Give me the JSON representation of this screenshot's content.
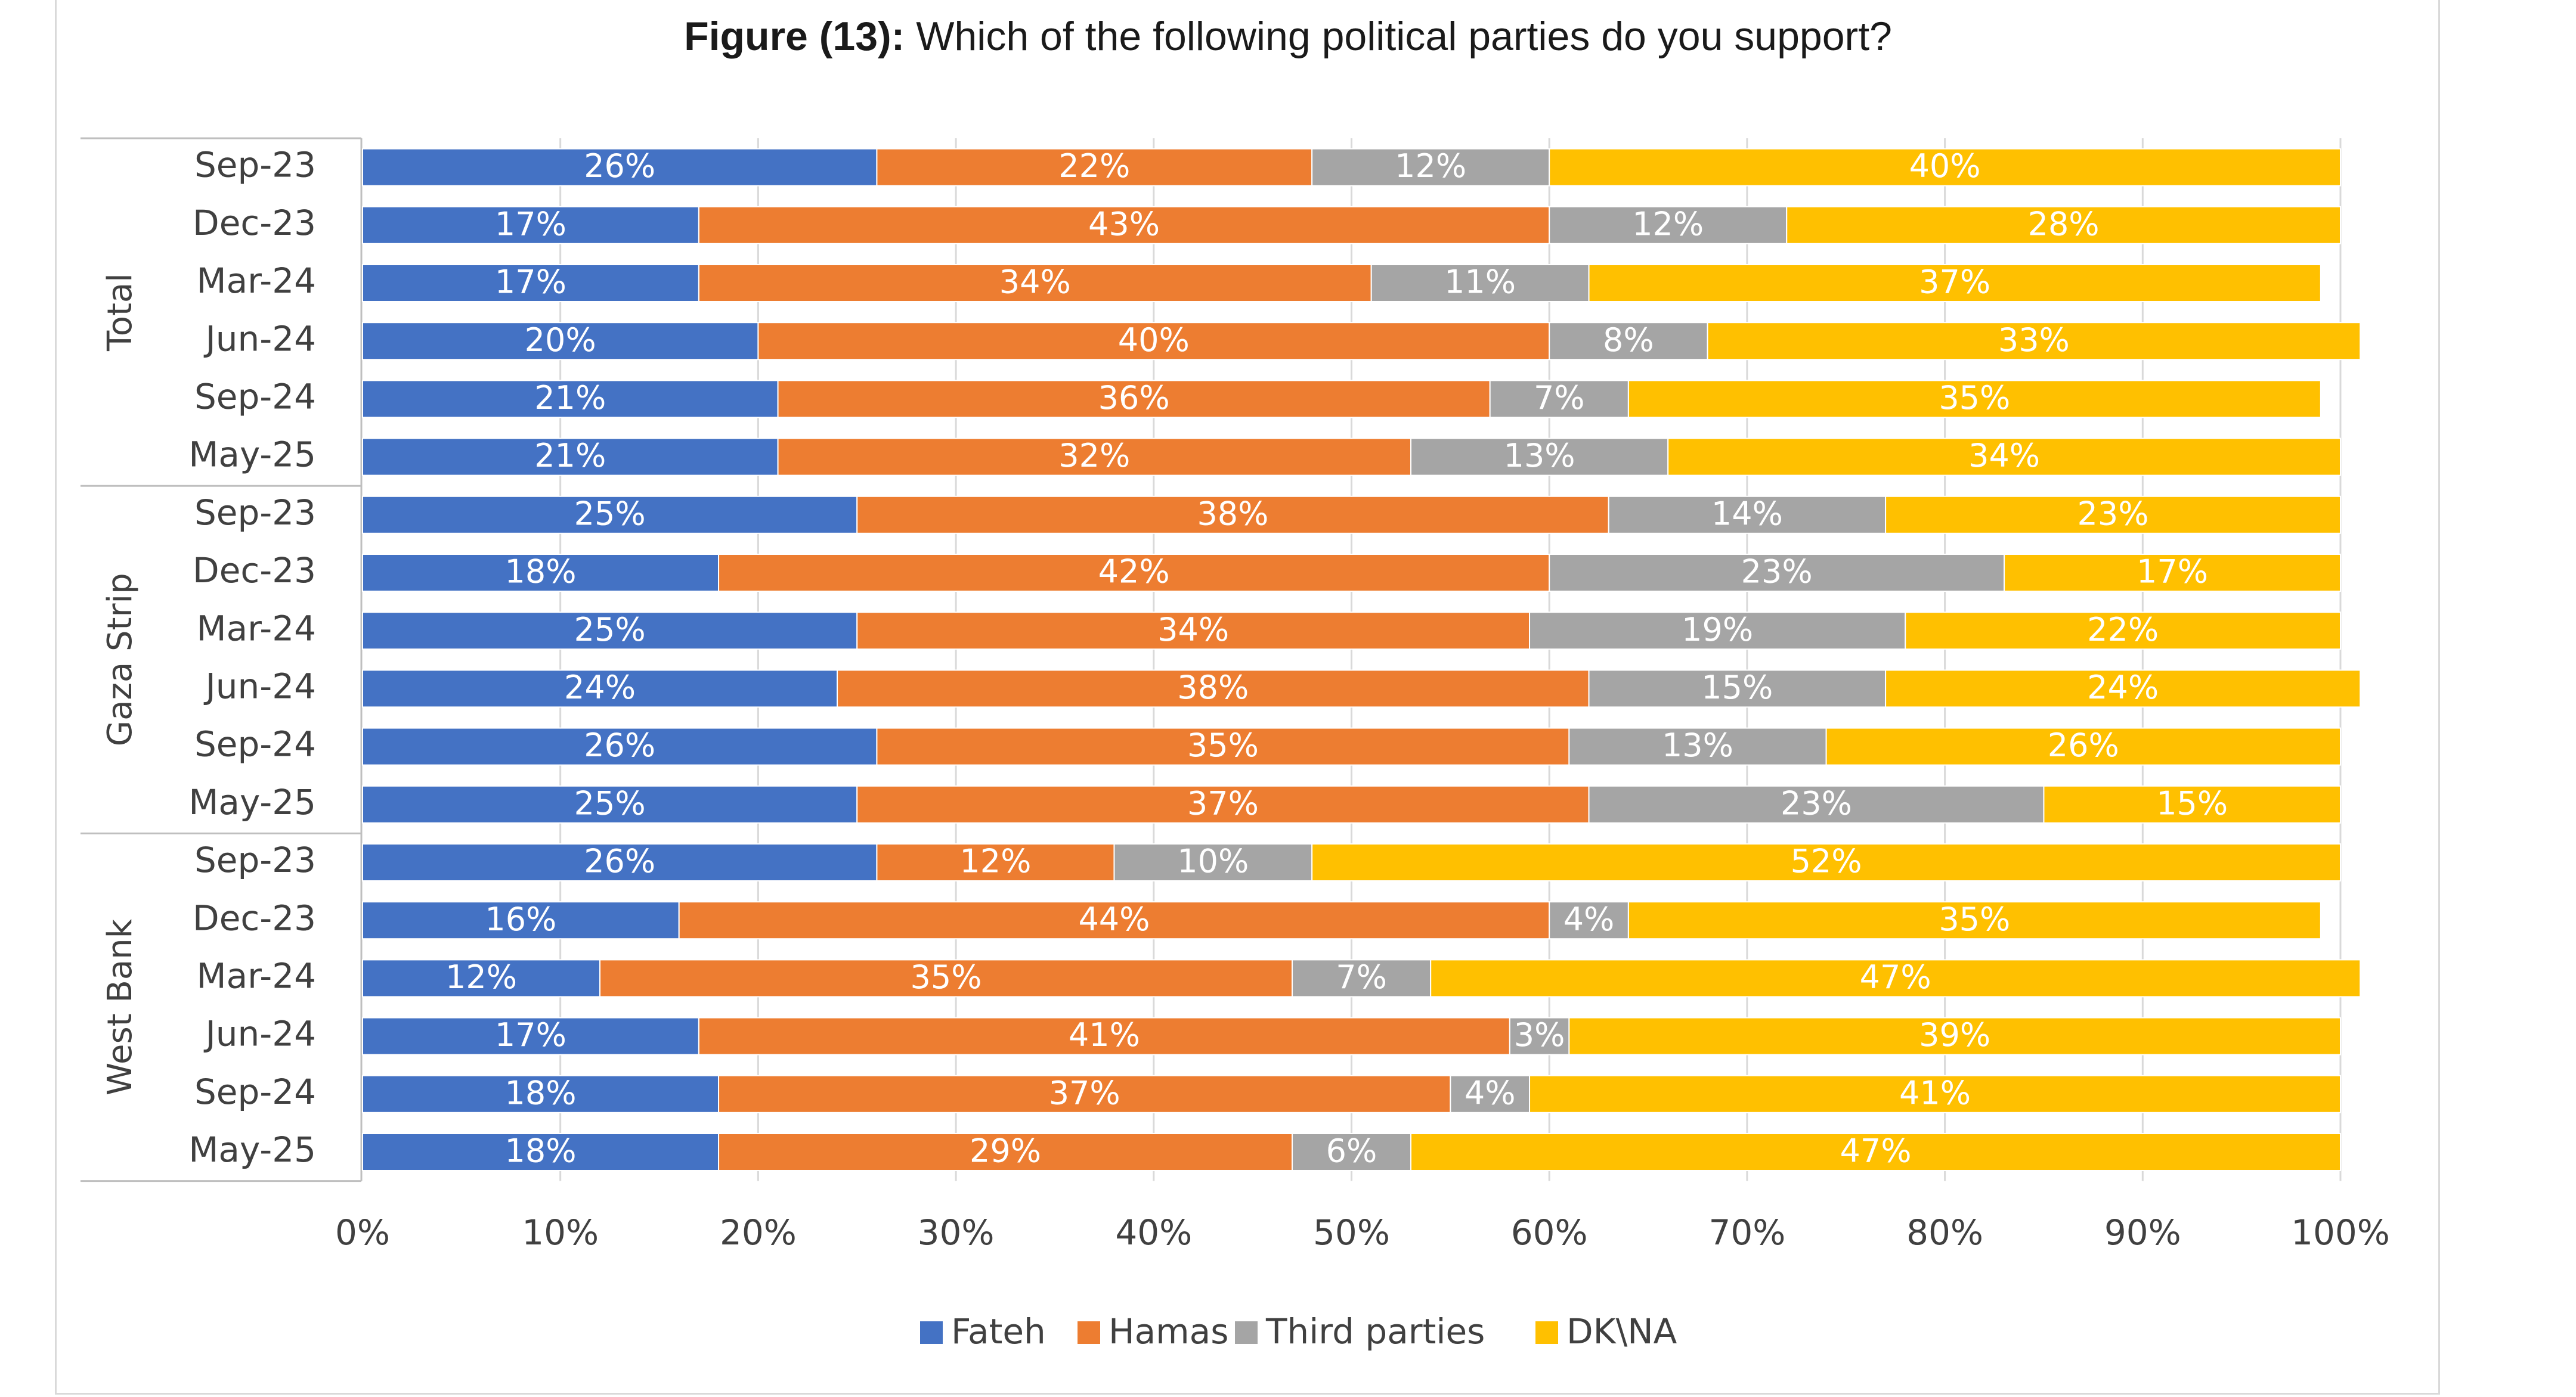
{
  "title": {
    "figure_label": "Figure (13):",
    "text": "Which of the following political parties do you support?"
  },
  "chart_data": {
    "type": "bar",
    "orientation": "horizontal",
    "stacked": "percent",
    "title": "Figure (13): Which of the following political parties do you support?",
    "xlabel": "",
    "ylabel": "",
    "xlim": [
      0,
      100
    ],
    "x_ticks": [
      "0%",
      "10%",
      "20%",
      "30%",
      "40%",
      "50%",
      "60%",
      "70%",
      "80%",
      "90%",
      "100%"
    ],
    "grid": true,
    "legend_position": "bottom",
    "groups": [
      {
        "name": "Total",
        "categories": [
          "Sep-23",
          "Dec-23",
          "Mar-24",
          "Jun-24",
          "Sep-24",
          "May-25"
        ]
      },
      {
        "name": "Gaza Strip",
        "categories": [
          "Sep-23",
          "Dec-23",
          "Mar-24",
          "Jun-24",
          "Sep-24",
          "May-25"
        ]
      },
      {
        "name": "West Bank",
        "categories": [
          "Sep-23",
          "Dec-23",
          "Mar-24",
          "Jun-24",
          "Sep-24",
          "May-25"
        ]
      }
    ],
    "series": [
      {
        "name": "Fateh",
        "color": "#4472c4",
        "values": [
          26,
          17,
          17,
          20,
          21,
          21,
          25,
          18,
          25,
          24,
          26,
          25,
          26,
          16,
          12,
          17,
          18,
          18
        ]
      },
      {
        "name": "Hamas",
        "color": "#ed7d31",
        "values": [
          22,
          43,
          34,
          40,
          36,
          32,
          38,
          42,
          34,
          38,
          35,
          37,
          12,
          44,
          35,
          41,
          37,
          29
        ]
      },
      {
        "name": "Third parties",
        "color": "#a5a5a5",
        "values": [
          12,
          12,
          11,
          8,
          7,
          13,
          14,
          23,
          19,
          15,
          13,
          23,
          10,
          4,
          7,
          3,
          4,
          6
        ]
      },
      {
        "name": "DK\\NA",
        "color": "#ffc000",
        "values": [
          40,
          28,
          37,
          33,
          35,
          34,
          23,
          17,
          22,
          24,
          26,
          15,
          52,
          35,
          47,
          39,
          41,
          47
        ]
      }
    ]
  }
}
